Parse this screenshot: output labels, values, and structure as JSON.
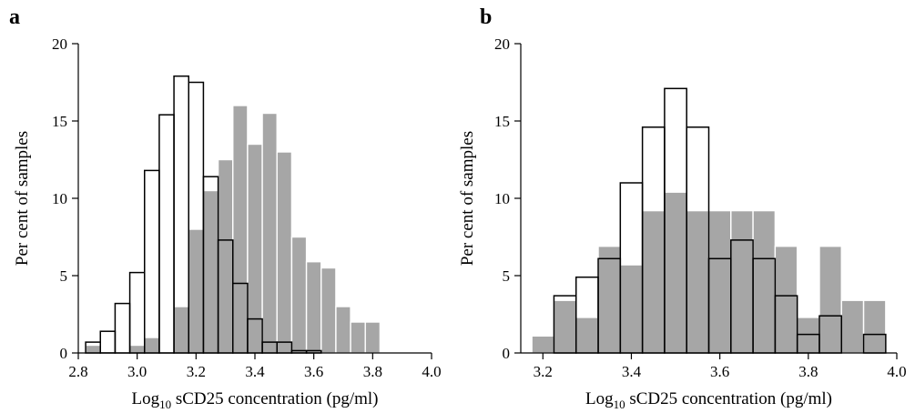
{
  "chart_data": [
    {
      "panel": "a",
      "type": "bar",
      "xlabel": "Log",
      "xlabel_sub": "10",
      "xlabel_rest": " sCD25 concentration (pg/ml)",
      "ylabel": "Per cent of samples",
      "xlim": [
        2.8,
        4.0
      ],
      "ylim": [
        0,
        20
      ],
      "xticks": [
        "2.8",
        "3.0",
        "3.2",
        "3.4",
        "3.6",
        "3.8",
        "4.0"
      ],
      "yticks": [
        "0",
        "5",
        "10",
        "15",
        "20"
      ],
      "bin_width": 0.05,
      "series": [
        {
          "fill": "#a6a6a6",
          "bins": [
            {
              "x0": 2.825,
              "y": 0.5
            },
            {
              "x0": 2.875,
              "y": 0.1
            },
            {
              "x0": 2.975,
              "y": 0.5
            },
            {
              "x0": 3.025,
              "y": 1.0
            },
            {
              "x0": 3.125,
              "y": 3.0
            },
            {
              "x0": 3.175,
              "y": 8.0
            },
            {
              "x0": 3.225,
              "y": 10.5
            },
            {
              "x0": 3.275,
              "y": 12.5
            },
            {
              "x0": 3.325,
              "y": 16.0
            },
            {
              "x0": 3.375,
              "y": 13.5
            },
            {
              "x0": 3.425,
              "y": 15.5
            },
            {
              "x0": 3.475,
              "y": 13.0
            },
            {
              "x0": 3.525,
              "y": 7.5
            },
            {
              "x0": 3.575,
              "y": 5.9
            },
            {
              "x0": 3.625,
              "y": 5.5
            },
            {
              "x0": 3.675,
              "y": 3.0
            },
            {
              "x0": 3.725,
              "y": 2.0
            },
            {
              "x0": 3.775,
              "y": 2.0
            }
          ]
        },
        {
          "fill": "none",
          "bins": [
            {
              "x0": 2.825,
              "y": 0.7
            },
            {
              "x0": 2.875,
              "y": 1.4
            },
            {
              "x0": 2.925,
              "y": 3.2
            },
            {
              "x0": 2.975,
              "y": 5.2
            },
            {
              "x0": 3.025,
              "y": 11.8
            },
            {
              "x0": 3.075,
              "y": 15.4
            },
            {
              "x0": 3.125,
              "y": 17.9
            },
            {
              "x0": 3.175,
              "y": 17.5
            },
            {
              "x0": 3.225,
              "y": 11.4
            },
            {
              "x0": 3.275,
              "y": 7.3
            },
            {
              "x0": 3.325,
              "y": 4.5
            },
            {
              "x0": 3.375,
              "y": 2.2
            },
            {
              "x0": 3.425,
              "y": 0.7
            },
            {
              "x0": 3.475,
              "y": 0.7
            },
            {
              "x0": 3.525,
              "y": 0.15
            },
            {
              "x0": 3.575,
              "y": 0.15
            }
          ]
        }
      ]
    },
    {
      "panel": "b",
      "type": "bar",
      "xlabel": "Log",
      "xlabel_sub": "10",
      "xlabel_rest": " sCD25 concentration (pg/ml)",
      "ylabel": "Per cent of samples",
      "xlim": [
        3.15,
        4.0
      ],
      "ylim": [
        0,
        20
      ],
      "xticks": [
        "3.2",
        "3.4",
        "3.6",
        "3.8",
        "4.0"
      ],
      "yticks": [
        "0",
        "5",
        "10",
        "15",
        "20"
      ],
      "bin_width": 0.05,
      "series": [
        {
          "fill": "#a6a6a6",
          "bins": [
            {
              "x0": 3.175,
              "y": 1.1
            },
            {
              "x0": 3.225,
              "y": 3.4
            },
            {
              "x0": 3.275,
              "y": 2.3
            },
            {
              "x0": 3.325,
              "y": 6.9
            },
            {
              "x0": 3.375,
              "y": 5.7
            },
            {
              "x0": 3.425,
              "y": 9.2
            },
            {
              "x0": 3.475,
              "y": 10.4
            },
            {
              "x0": 3.525,
              "y": 9.2
            },
            {
              "x0": 3.575,
              "y": 9.2
            },
            {
              "x0": 3.625,
              "y": 9.2
            },
            {
              "x0": 3.675,
              "y": 9.2
            },
            {
              "x0": 3.725,
              "y": 6.9
            },
            {
              "x0": 3.775,
              "y": 2.3
            },
            {
              "x0": 3.825,
              "y": 6.9
            },
            {
              "x0": 3.875,
              "y": 3.4
            },
            {
              "x0": 3.925,
              "y": 3.4
            }
          ]
        },
        {
          "fill": "none",
          "bins": [
            {
              "x0": 3.225,
              "y": 3.7
            },
            {
              "x0": 3.275,
              "y": 4.9
            },
            {
              "x0": 3.325,
              "y": 6.1
            },
            {
              "x0": 3.375,
              "y": 11.0
            },
            {
              "x0": 3.425,
              "y": 14.6
            },
            {
              "x0": 3.475,
              "y": 17.1
            },
            {
              "x0": 3.525,
              "y": 14.6
            },
            {
              "x0": 3.575,
              "y": 6.1
            },
            {
              "x0": 3.625,
              "y": 7.3
            },
            {
              "x0": 3.675,
              "y": 6.1
            },
            {
              "x0": 3.725,
              "y": 3.7
            },
            {
              "x0": 3.775,
              "y": 1.2
            },
            {
              "x0": 3.825,
              "y": 2.4
            },
            {
              "x0": 3.925,
              "y": 1.2
            }
          ]
        }
      ]
    }
  ]
}
